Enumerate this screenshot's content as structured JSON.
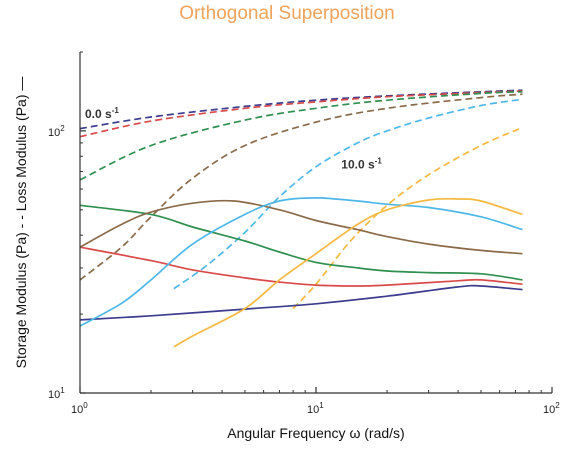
{
  "chart_data": {
    "type": "line",
    "title": "Orthogonal Superposition",
    "xlabel": "Angular Frequency ω (rad/s)",
    "ylabel_left": "Storage Modulus (Pa)",
    "ylabel_right": "Loss Modulus (Pa)",
    "xscale": "log",
    "yscale": "log",
    "xlim": [
      1,
      100
    ],
    "ylim": [
      10,
      200
    ],
    "x_ticks": [
      {
        "value": 1,
        "base": "10",
        "exp": "0"
      },
      {
        "value": 10,
        "base": "10",
        "exp": "1"
      },
      {
        "value": 100,
        "base": "10",
        "exp": "2"
      }
    ],
    "y_ticks": [
      {
        "value": 10,
        "base": "10",
        "exp": "1"
      },
      {
        "value": 100,
        "base": "10",
        "exp": "2"
      }
    ],
    "annotations": [
      {
        "text_base": "0.0 s",
        "text_exp": "-1",
        "x": 1.05,
        "y": 112
      },
      {
        "text_base": "10.0 s",
        "text_exp": "-1",
        "x": 12.8,
        "y": 72
      }
    ],
    "series": [
      {
        "color": "#3d3d8f",
        "dash": true,
        "x": [
          1,
          2,
          5,
          10,
          20,
          50,
          75
        ],
        "y": [
          102,
          113,
          124,
          131,
          136,
          141,
          143
        ]
      },
      {
        "color": "#d94a4a",
        "dash": true,
        "x": [
          1,
          2,
          5,
          10,
          20,
          50,
          75
        ],
        "y": [
          95,
          109,
          122,
          129,
          135,
          140,
          142
        ]
      },
      {
        "color": "#2f8f4f",
        "dash": true,
        "x": [
          1,
          2,
          5,
          10,
          20,
          50,
          75
        ],
        "y": [
          65,
          88,
          110,
          122,
          131,
          139,
          141
        ]
      },
      {
        "color": "#8b6a4a",
        "dash": true,
        "x": [
          1,
          1.5,
          2,
          3,
          5,
          10,
          20,
          50,
          75
        ],
        "y": [
          27,
          36,
          47,
          66,
          88,
          108,
          122,
          134,
          138
        ]
      },
      {
        "color": "#4db8e8",
        "dash": true,
        "x": [
          2.5,
          3.5,
          5,
          7,
          10,
          15,
          20,
          30,
          50,
          75
        ],
        "y": [
          25,
          31,
          41,
          56,
          73,
          90,
          100,
          112,
          125,
          132
        ]
      },
      {
        "color": "#f5b942",
        "dash": true,
        "x": [
          8,
          10,
          14,
          20,
          30,
          50,
          75
        ],
        "y": [
          21,
          26,
          38,
          52,
          68,
          88,
          103
        ]
      },
      {
        "color": "#3d3d8f",
        "dash": false,
        "x": [
          1,
          2,
          5,
          10,
          20,
          40,
          50,
          75
        ],
        "y": [
          19,
          19.7,
          20.9,
          21.9,
          23.4,
          25.4,
          25.6,
          24.8
        ]
      },
      {
        "color": "#d94a4a",
        "dash": false,
        "x": [
          1,
          2,
          3,
          5,
          7,
          10,
          15,
          20,
          40,
          50,
          75
        ],
        "y": [
          36,
          32,
          29.5,
          27.5,
          26.5,
          25.8,
          25.6,
          25.8,
          26.8,
          27,
          26
        ]
      },
      {
        "color": "#2f8f4f",
        "dash": false,
        "x": [
          1,
          2,
          3,
          5,
          7,
          10,
          15,
          20,
          30,
          50,
          75
        ],
        "y": [
          52,
          48,
          43,
          38,
          34.5,
          31.5,
          30,
          29.2,
          28.8,
          28.5,
          27
        ]
      },
      {
        "color": "#8b6a4a",
        "dash": false,
        "x": [
          1,
          1.5,
          2,
          3,
          4.5,
          7,
          10,
          15,
          20,
          30,
          50,
          75
        ],
        "y": [
          36,
          44,
          49,
          53,
          54,
          50,
          45.5,
          42,
          39.5,
          37,
          35,
          34
        ]
      },
      {
        "color": "#4db8e8",
        "dash": false,
        "x": [
          1,
          1.5,
          2,
          3,
          5,
          7,
          10,
          15,
          20,
          30,
          50,
          75
        ],
        "y": [
          18,
          22,
          27,
          37,
          48,
          54,
          55.5,
          54,
          52.5,
          51,
          47,
          42
        ]
      },
      {
        "color": "#f5b942",
        "dash": false,
        "x": [
          2.5,
          3,
          5,
          7,
          10,
          15,
          20,
          30,
          40,
          50,
          75
        ],
        "y": [
          15,
          16.5,
          21,
          27,
          34,
          44,
          50,
          54.5,
          55,
          54,
          48
        ]
      }
    ]
  }
}
